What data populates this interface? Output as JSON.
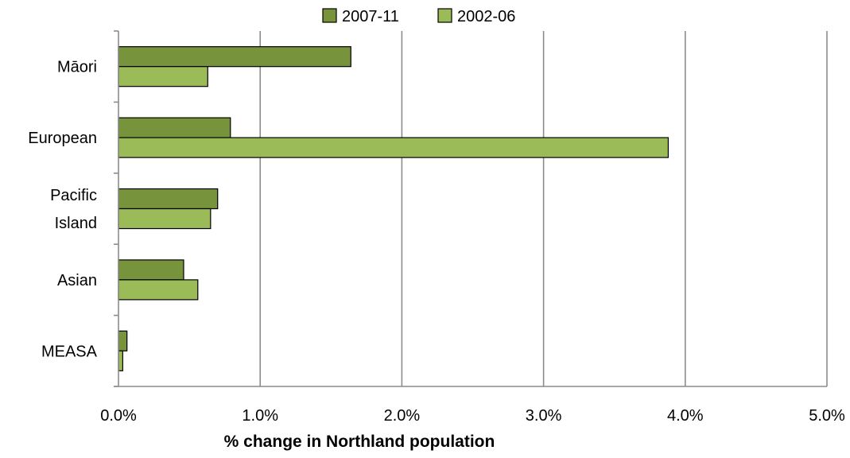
{
  "chart_data": {
    "type": "bar",
    "orientation": "horizontal",
    "categories": [
      "Māori",
      "European",
      "Pacific Island",
      "Asian",
      "MEASA"
    ],
    "category_lines": [
      [
        "Māori"
      ],
      [
        "European"
      ],
      [
        "Pacific",
        "Island"
      ],
      [
        "Asian"
      ],
      [
        "MEASA"
      ]
    ],
    "series": [
      {
        "name": "2007-11",
        "color": "#77933c",
        "values": [
          1.64,
          0.79,
          0.7,
          0.46,
          0.06
        ]
      },
      {
        "name": "2002-06",
        "color": "#9bbb59",
        "values": [
          0.63,
          3.88,
          0.65,
          0.56,
          0.03
        ]
      }
    ],
    "xlim": [
      0,
      5
    ],
    "x_ticks": [
      0,
      1,
      2,
      3,
      4,
      5
    ],
    "x_tick_labels": [
      "0.0%",
      "1.0%",
      "2.0%",
      "3.0%",
      "4.0%",
      "5.0%"
    ],
    "xlabel": "% change in Northland population",
    "ylabel": "",
    "title": "",
    "grid": "vertical",
    "legend_position": "top-center"
  }
}
